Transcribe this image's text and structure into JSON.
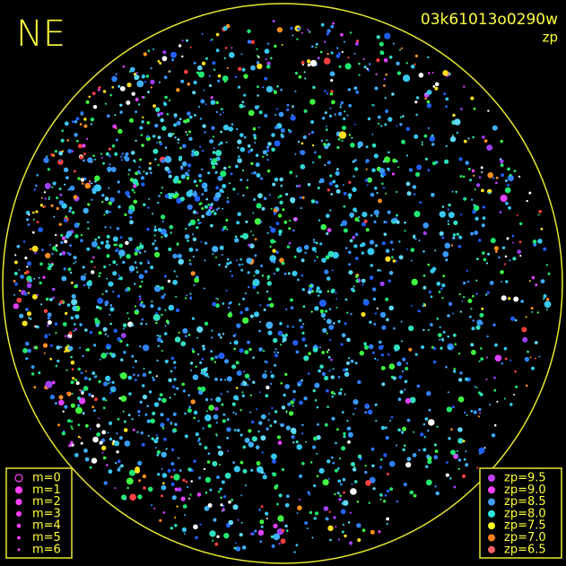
{
  "header": {
    "direction": "NE",
    "image_id": "03k61013o0290w",
    "subtitle": "zp"
  },
  "legend_magnitude": [
    "m=0",
    "m=1",
    "m=2",
    "m=3",
    "m=4",
    "m=5",
    "m=6"
  ],
  "legend_zp": [
    "zp=9.5",
    "zp=9.0",
    "zp=8.5",
    "zp=8.0",
    "zp=7.5",
    "zp=7.0",
    "zp=6.5"
  ]
}
